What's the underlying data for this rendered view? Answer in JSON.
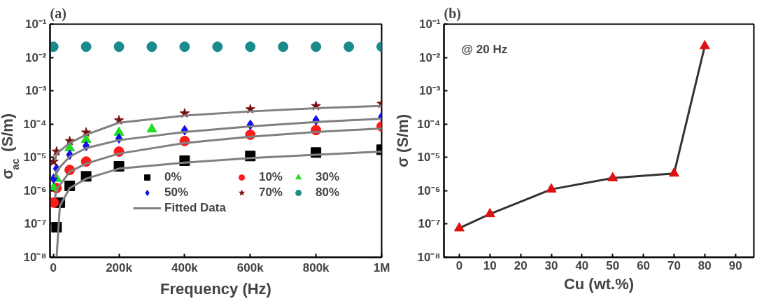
{
  "chart_data": [
    {
      "type": "scatter",
      "title": "(a)",
      "xlabel": "Frequency (Hz)",
      "ylabel": "σ$_{ac}$ (S/m)",
      "log": "y",
      "grid": false,
      "legend": "bottom right",
      "xlim": [
        -10000,
        1000000
      ],
      "ylim": [
        1e-08,
        0.1
      ],
      "xticks": [
        0,
        {
          "value": 200000,
          "label": "200k"
        },
        {
          "value": 400000,
          "label": "400k"
        },
        {
          "value": 600000,
          "label": "600k"
        },
        {
          "value": 800000,
          "label": "800k"
        },
        {
          "value": 1000000,
          "label": "1M"
        }
      ],
      "yticks": [
        {
          "value": 1e-08,
          "label": "10⁻⁸"
        },
        {
          "value": 1e-07,
          "label": "10⁻⁷"
        },
        {
          "value": 1e-06,
          "label": "10⁻⁶"
        },
        {
          "value": 1e-05,
          "label": "10⁻⁵"
        },
        {
          "value": 0.0001,
          "label": "10⁻⁴"
        },
        {
          "value": 0.001,
          "label": "10⁻³"
        },
        {
          "value": 0.01,
          "label": "10⁻²"
        },
        {
          "value": 0.1,
          "label": "10⁻¹"
        }
      ],
      "series": [
        {
          "name": "0%",
          "color": "#000000",
          "marker": "square",
          "x": [
            10000,
            20000,
            50000,
            100000,
            200000,
            400000,
            600000,
            800000,
            1000000
          ],
          "values": [
            8e-08,
            4.4e-07,
            1.4e-06,
            2.7e-06,
            5.4e-06,
            8e-06,
            1.1e-05,
            1.4e-05,
            1.7e-05
          ]
        },
        {
          "name": "10%",
          "color": "#ff1a1a",
          "marker": "circle",
          "x": [
            1000,
            10000,
            50000,
            100000,
            200000,
            400000,
            600000,
            800000,
            1000000
          ],
          "values": [
            4.4e-07,
            1.2e-06,
            4.2e-06,
            7.5e-06,
            1.5e-05,
            3.1e-05,
            4.8e-05,
            6.6e-05,
            8.5e-05
          ]
        },
        {
          "name": "30%",
          "color": "#22dd22",
          "marker": "triangle",
          "x": [
            1000,
            10000,
            50000,
            100000,
            200000,
            300000
          ],
          "values": [
            1.2e-06,
            2.3e-06,
            1.9e-05,
            3.4e-05,
            5.6e-05,
            7e-05
          ]
        },
        {
          "name": "50%",
          "color": "#1010ee",
          "marker": "diamond",
          "x": [
            1000,
            10000,
            50000,
            100000,
            200000,
            400000,
            600000,
            800000,
            1000000
          ],
          "values": [
            2.3e-06,
            4.6e-06,
            1.2e-05,
            2.2e-05,
            3.7e-05,
            6.5e-05,
            9.5e-05,
            0.00013,
            0.000165
          ]
        },
        {
          "name": "70%",
          "color": "#7a1010",
          "marker": "star",
          "x": [
            1000,
            10000,
            50000,
            100000,
            200000,
            400000,
            600000,
            800000,
            1000000
          ],
          "values": [
            7.5e-06,
            1.5e-05,
            3.1e-05,
            5.6e-05,
            0.00013,
            0.00021,
            0.00028,
            0.00035,
            0.00041
          ]
        },
        {
          "name": "80%",
          "color": "#1a8a8a",
          "marker": "circle",
          "x": [
            0,
            100000,
            200000,
            300000,
            400000,
            500000,
            600000,
            700000,
            800000,
            900000,
            1000000
          ],
          "values": [
            0.021,
            0.021,
            0.021,
            0.021,
            0.021,
            0.021,
            0.021,
            0.021,
            0.021,
            0.021,
            0.021
          ]
        },
        {
          "name": "Fitted Data",
          "type": "line",
          "color": "#808080",
          "x": [
            10000,
            20000,
            50000,
            100000,
            200000,
            400000,
            600000,
            800000,
            1000000
          ],
          "values": [
            1e-08,
            3.5e-07,
            1.2e-06,
            2.3e-06,
            4.6e-06,
            7e-06,
            9.6e-06,
            1.2e-05,
            1.5e-05
          ]
        },
        {
          "type": "line",
          "color": "#808080",
          "x": [
            5000,
            10000,
            50000,
            100000,
            200000,
            400000,
            600000,
            800000,
            1000000
          ],
          "values": [
            6e-07,
            1.1e-06,
            3.7e-06,
            6.5e-06,
            1.3e-05,
            2.7e-05,
            4.2e-05,
            5.8e-05,
            7.4e-05
          ]
        },
        {
          "type": "line",
          "color": "#808080",
          "x": [
            5000,
            10000,
            50000,
            100000,
            200000,
            400000,
            600000,
            800000,
            1000000
          ],
          "values": [
            2.5e-06,
            4e-06,
            1.05e-05,
            1.9e-05,
            3.3e-05,
            5.8e-05,
            8.5e-05,
            0.000115,
            0.000145
          ]
        },
        {
          "type": "line",
          "color": "#808080",
          "x": [
            5000,
            10000,
            50000,
            100000,
            200000,
            400000,
            600000,
            800000,
            1000000
          ],
          "values": [
            8e-06,
            1.3e-05,
            2.7e-05,
            4.8e-05,
            0.00011,
            0.00018,
            0.00024,
            0.0003,
            0.00035
          ]
        }
      ]
    },
    {
      "type": "line",
      "title": "(b)",
      "xlabel": "Cu (wt.%)",
      "ylabel": "σ (S/m)",
      "log": "y",
      "grid": false,
      "legend": false,
      "xlim": [
        -5,
        96
      ],
      "ylim": [
        1e-08,
        0.1
      ],
      "xticks": [
        0,
        10,
        20,
        30,
        40,
        50,
        60,
        70,
        80,
        90
      ],
      "yticks": [
        {
          "value": 1e-08,
          "label": "10⁻⁸"
        },
        {
          "value": 1e-07,
          "label": "10⁻⁷"
        },
        {
          "value": 1e-06,
          "label": "10⁻⁶"
        },
        {
          "value": 1e-05,
          "label": "10⁻⁵"
        },
        {
          "value": 0.0001,
          "label": "10⁻⁴"
        },
        {
          "value": 0.001,
          "label": "10⁻³"
        },
        {
          "value": 0.01,
          "label": "10⁻²"
        },
        {
          "value": 0.1,
          "label": "10⁻¹"
        }
      ],
      "annotations": [
        "@ 20 Hz"
      ],
      "series": [
        {
          "type": "line",
          "color": "#333333",
          "x": [
            0,
            10,
            30,
            50,
            70,
            80
          ],
          "values": [
            7.5e-08,
            2e-07,
            1.1e-06,
            2.4e-06,
            3.3e-06,
            0.022
          ]
        },
        {
          "type": "scatter",
          "color": "#e01010",
          "marker": "triangle",
          "x": [
            0,
            10,
            30,
            50,
            70,
            80
          ],
          "values": [
            7.5e-08,
            2e-07,
            1.1e-06,
            2.4e-06,
            3.3e-06,
            0.022
          ]
        }
      ]
    }
  ]
}
